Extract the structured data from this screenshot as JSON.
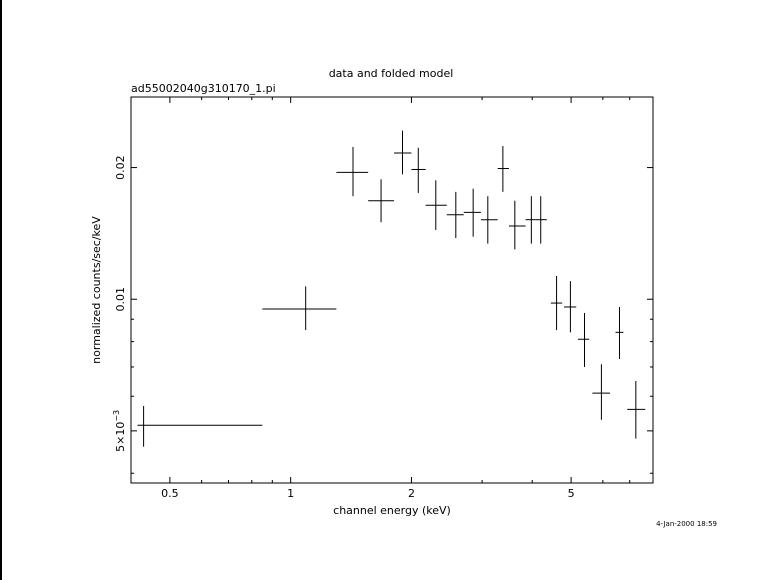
{
  "chart_data": {
    "type": "scatter",
    "title": "data and folded model",
    "subtitle": "ad55002040g310170_1.pi",
    "xlabel": "channel energy (keV)",
    "ylabel": "normalized counts/sec/keV",
    "timestamp": "4-Jan-2000 18:59",
    "x_scale": "log",
    "y_scale": "log",
    "xlim": [
      0.4,
      8.0
    ],
    "ylim": [
      0.0038,
      0.029
    ],
    "x_ticks": [
      {
        "value": 0.5,
        "label": "0.5"
      },
      {
        "value": 1,
        "label": "1"
      },
      {
        "value": 2,
        "label": "2"
      },
      {
        "value": 5,
        "label": "5"
      }
    ],
    "y_ticks": [
      {
        "value": 0.005,
        "label_mantissa": "5×10",
        "label_exponent": "−3"
      },
      {
        "value": 0.01,
        "label": "0.01"
      },
      {
        "value": 0.02,
        "label": "0.02"
      }
    ],
    "series": [
      {
        "points": [
          {
            "x": 0.43,
            "xlo": 0.415,
            "xhi": 0.85,
            "y": 0.00515,
            "ylo": 0.0046,
            "yhi": 0.0057
          },
          {
            "x": 1.09,
            "xlo": 0.85,
            "xhi": 1.3,
            "y": 0.0095,
            "ylo": 0.0085,
            "yhi": 0.0107
          },
          {
            "x": 1.43,
            "xlo": 1.3,
            "xhi": 1.56,
            "y": 0.0195,
            "ylo": 0.0172,
            "yhi": 0.0223
          },
          {
            "x": 1.68,
            "xlo": 1.56,
            "xhi": 1.81,
            "y": 0.0168,
            "ylo": 0.015,
            "yhi": 0.0188
          },
          {
            "x": 1.9,
            "xlo": 1.81,
            "xhi": 2.0,
            "y": 0.0216,
            "ylo": 0.0193,
            "yhi": 0.0243
          },
          {
            "x": 2.08,
            "xlo": 2.0,
            "xhi": 2.17,
            "y": 0.0198,
            "ylo": 0.0175,
            "yhi": 0.0222
          },
          {
            "x": 2.3,
            "xlo": 2.17,
            "xhi": 2.45,
            "y": 0.0164,
            "ylo": 0.0144,
            "yhi": 0.0187
          },
          {
            "x": 2.58,
            "xlo": 2.45,
            "xhi": 2.7,
            "y": 0.0156,
            "ylo": 0.0138,
            "yhi": 0.0176
          },
          {
            "x": 2.85,
            "xlo": 2.7,
            "xhi": 2.98,
            "y": 0.0158,
            "ylo": 0.0139,
            "yhi": 0.0179
          },
          {
            "x": 3.1,
            "xlo": 2.98,
            "xhi": 3.28,
            "y": 0.0152,
            "ylo": 0.0134,
            "yhi": 0.0172
          },
          {
            "x": 3.38,
            "xlo": 3.28,
            "xhi": 3.5,
            "y": 0.0199,
            "ylo": 0.0176,
            "yhi": 0.0224
          },
          {
            "x": 3.62,
            "xlo": 3.5,
            "xhi": 3.85,
            "y": 0.0147,
            "ylo": 0.013,
            "yhi": 0.0168
          },
          {
            "x": 3.98,
            "xlo": 3.85,
            "xhi": 4.08,
            "y": 0.0152,
            "ylo": 0.0134,
            "yhi": 0.0172
          },
          {
            "x": 4.2,
            "xlo": 4.08,
            "xhi": 4.35,
            "y": 0.0152,
            "ylo": 0.0134,
            "yhi": 0.0172
          },
          {
            "x": 4.6,
            "xlo": 4.45,
            "xhi": 4.75,
            "y": 0.0098,
            "ylo": 0.0085,
            "yhi": 0.0113
          },
          {
            "x": 4.98,
            "xlo": 4.8,
            "xhi": 5.15,
            "y": 0.0096,
            "ylo": 0.0084,
            "yhi": 0.011
          },
          {
            "x": 5.4,
            "xlo": 5.2,
            "xhi": 5.55,
            "y": 0.0081,
            "ylo": 0.007,
            "yhi": 0.0093
          },
          {
            "x": 5.95,
            "xlo": 5.65,
            "xhi": 6.25,
            "y": 0.0061,
            "ylo": 0.0053,
            "yhi": 0.0071
          },
          {
            "x": 6.6,
            "xlo": 6.45,
            "xhi": 6.75,
            "y": 0.0084,
            "ylo": 0.0073,
            "yhi": 0.0096
          },
          {
            "x": 7.25,
            "xlo": 6.9,
            "xhi": 7.65,
            "y": 0.0056,
            "ylo": 0.0048,
            "yhi": 0.0065
          }
        ]
      }
    ]
  }
}
